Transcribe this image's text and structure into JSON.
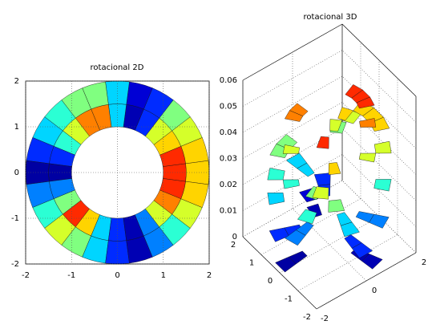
{
  "chart_data": [
    {
      "type": "polar-mesh",
      "title": "rotacional 2D",
      "theta": [
        0,
        15,
        30,
        45,
        60,
        75,
        90,
        105,
        120,
        135,
        150,
        165,
        180,
        195,
        210,
        225,
        240,
        255,
        270,
        285,
        300,
        315,
        330,
        345
      ],
      "rlim": [
        1,
        2
      ],
      "values": [
        [
          0.05,
          0.05,
          0.04,
          0.035,
          0.01,
          0.003,
          0.02,
          0.045,
          0.045,
          0.035,
          0.025,
          0.01,
          0.002,
          0.015,
          0.03,
          0.05,
          0.04,
          0.02,
          0.01,
          0.003,
          0.015,
          0.035,
          0.045,
          0.05
        ],
        [
          0.04,
          0.04,
          0.035,
          0.03,
          0.01,
          0.005,
          0.02,
          0.03,
          0.03,
          0.025,
          0.02,
          0.01,
          0.002,
          0.015,
          0.025,
          0.035,
          0.03,
          0.02,
          0.01,
          0.003,
          0.015,
          0.025,
          0.035,
          0.04
        ]
      ],
      "clim": [
        0,
        0.06
      ],
      "xlim": [
        -2,
        2
      ],
      "xticks": [
        -2,
        -1,
        0,
        1,
        2
      ],
      "ylim": [
        -2,
        2
      ],
      "yticks": [
        -2,
        -1,
        0,
        1,
        2
      ],
      "grid": true
    },
    {
      "type": "surface3d",
      "title": "rotacional 3D",
      "xlim": [
        -2,
        2
      ],
      "xticks": [
        -2,
        0,
        2
      ],
      "ylim": [
        -2,
        2
      ],
      "yticks": [
        -2,
        -1,
        0,
        1,
        2
      ],
      "zlim": [
        0,
        0.06
      ],
      "zticks": [
        0,
        0.01,
        0.02,
        0.03,
        0.04,
        0.05,
        0.06
      ],
      "grid": true
    }
  ]
}
